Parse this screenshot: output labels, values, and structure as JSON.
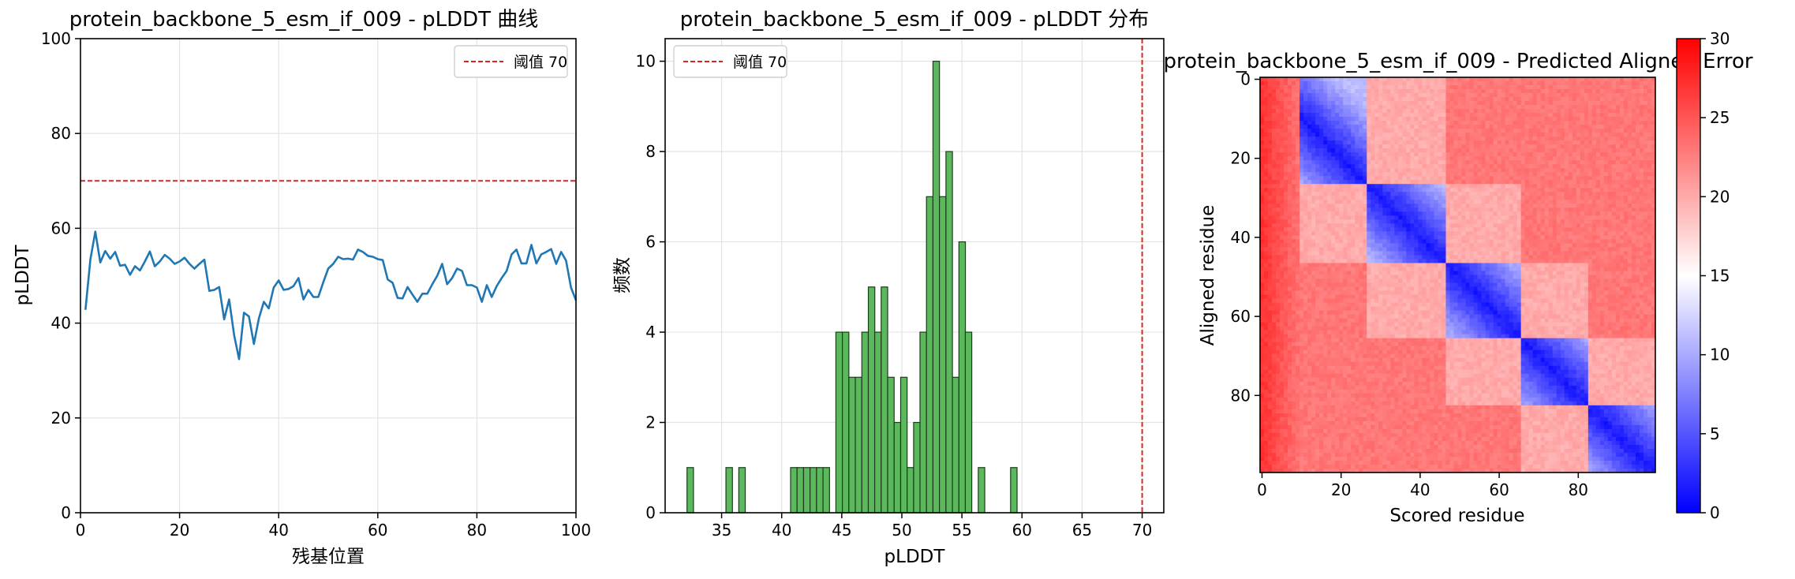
{
  "chart_data": [
    {
      "type": "line",
      "title": "protein_backbone_5_esm_if_009 - pLDDT 曲线",
      "xlabel": "残基位置",
      "ylabel": "pLDDT",
      "xlim": [
        0,
        100
      ],
      "ylim": [
        0,
        100
      ],
      "xticks": [
        "0",
        "20",
        "40",
        "60",
        "80",
        "100"
      ],
      "yticks": [
        "0",
        "20",
        "40",
        "60",
        "80",
        "100"
      ],
      "grid": true,
      "legend_position": "upper right",
      "threshold": {
        "label": "阈值 70",
        "value": 70,
        "color": "#d62728"
      },
      "series": [
        {
          "color": "#1f77b4",
          "x": [
            1,
            2,
            3,
            4,
            5,
            6,
            7,
            8,
            9,
            10,
            11,
            12,
            13,
            14,
            15,
            16,
            17,
            18,
            19,
            20,
            21,
            22,
            23,
            24,
            25,
            26,
            27,
            28,
            29,
            30,
            31,
            32,
            33,
            34,
            35,
            36,
            37,
            38,
            39,
            40,
            41,
            42,
            43,
            44,
            45,
            46,
            47,
            48,
            49,
            50,
            51,
            52,
            53,
            54,
            55,
            56,
            57,
            58,
            59,
            60,
            61,
            62,
            63,
            64,
            65,
            66,
            67,
            68,
            69,
            70,
            71,
            72,
            73,
            74,
            75,
            76,
            77,
            78,
            79,
            80,
            81,
            82,
            83,
            84,
            85,
            86,
            87,
            88,
            89,
            90,
            91,
            92,
            93,
            94,
            95,
            96,
            97,
            98,
            99,
            100
          ],
          "y": [
            42.8,
            53.5,
            59.3,
            52.8,
            55.2,
            53.6,
            55.0,
            52.1,
            52.3,
            50.2,
            52.0,
            51.1,
            53.0,
            55.1,
            52.0,
            53.0,
            54.4,
            53.6,
            52.5,
            53.0,
            53.8,
            52.5,
            51.5,
            52.5,
            53.4,
            46.8,
            47.0,
            47.6,
            40.8,
            45.0,
            37.5,
            32.4,
            42.2,
            41.4,
            35.6,
            41.0,
            44.5,
            43.1,
            47.5,
            49.0,
            47.0,
            47.2,
            47.8,
            49.5,
            45.0,
            47.0,
            45.5,
            45.5,
            48.6,
            51.5,
            52.5,
            54.0,
            53.5,
            53.6,
            53.4,
            55.5,
            55.0,
            54.2,
            54.0,
            53.5,
            53.3,
            49.2,
            48.5,
            45.3,
            45.2,
            47.6,
            46.0,
            44.5,
            46.2,
            46.2,
            48.2,
            50.0,
            52.5,
            48.2,
            49.5,
            51.5,
            51.0,
            48.0,
            48.0,
            47.5,
            44.5,
            48.0,
            45.5,
            47.8,
            49.5,
            51.0,
            54.5,
            55.5,
            52.6,
            52.6,
            56.5,
            52.6,
            54.5,
            55.0,
            55.6,
            52.5,
            55.0,
            53.2,
            47.5,
            44.8
          ]
        }
      ]
    },
    {
      "type": "bar",
      "title": "protein_backbone_5_esm_if_009 - pLDDT 分布",
      "xlabel": "pLDDT",
      "ylabel": "频数",
      "xlim": [
        30.3,
        71.8
      ],
      "ylim": [
        0,
        10.5
      ],
      "xticks": [
        "35",
        "40",
        "45",
        "50",
        "55",
        "60",
        "65",
        "70"
      ],
      "yticks": [
        "0",
        "2",
        "4",
        "6",
        "8",
        "10"
      ],
      "grid": true,
      "legend_position": "upper left",
      "threshold": {
        "label": "阈值 70",
        "value": 70,
        "color": "#d62728"
      },
      "bar_color": "#5cb85c",
      "bin_width": 0.539,
      "bins": [
        32.12,
        35.36,
        36.43,
        40.74,
        41.28,
        41.82,
        42.36,
        42.9,
        43.44,
        44.51,
        45.05,
        45.59,
        46.13,
        46.67,
        47.21,
        47.74,
        48.28,
        48.82,
        49.36,
        49.9,
        50.44,
        50.98,
        51.51,
        52.05,
        52.59,
        53.13,
        53.67,
        54.21,
        54.75,
        55.28,
        56.36,
        59.05
      ],
      "values": [
        1,
        1,
        1,
        1,
        1,
        1,
        1,
        1,
        1,
        4,
        4,
        3,
        3,
        4,
        5,
        4,
        5,
        3,
        2,
        3,
        1,
        2,
        4,
        7,
        10,
        7,
        8,
        3,
        6,
        4,
        1,
        1
      ]
    },
    {
      "type": "heatmap",
      "title": "protein_backbone_5_esm_if_009 - Predicted Aligned Error",
      "xlabel": "Scored residue",
      "ylabel": "Aligned residue",
      "size": 100,
      "xticks": [
        "0",
        "20",
        "40",
        "60",
        "80"
      ],
      "yticks": [
        "0",
        "20",
        "40",
        "60",
        "80"
      ],
      "colormap": "bwr",
      "color_range": [
        0,
        30
      ],
      "colorbar_ticks": [
        "0",
        "5",
        "10",
        "15",
        "20",
        "25",
        "30"
      ],
      "domain_boundaries": [
        0,
        27,
        47,
        66,
        83,
        100
      ]
    }
  ]
}
